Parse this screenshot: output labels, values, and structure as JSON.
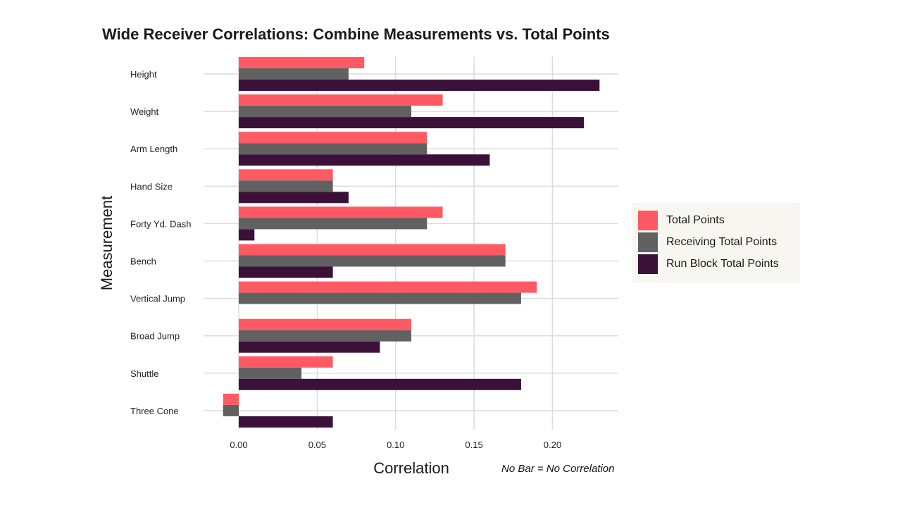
{
  "chart_data": {
    "type": "bar",
    "orientation": "horizontal",
    "title": "Wide Receiver Correlations: Combine Measurements vs. Total Points",
    "xlabel": "Correlation",
    "ylabel": "Measurement",
    "annotation": "No Bar = No Correlation",
    "xlim": [
      -0.022,
      0.242
    ],
    "xticks": [
      0.0,
      0.05,
      0.1,
      0.15,
      0.2
    ],
    "xtick_labels": [
      "0.00",
      "0.05",
      "0.10",
      "0.15",
      "0.20"
    ],
    "grid": true,
    "legend_position": "right",
    "categories": [
      "Height",
      "Weight",
      "Arm Length",
      "Hand Size",
      "Forty Yd. Dash",
      "Bench",
      "Vertical Jump",
      "Broad Jump",
      "Shuttle",
      "Three Cone"
    ],
    "series": [
      {
        "name": "Total Points",
        "color": "#FF5A64",
        "values": [
          0.08,
          0.13,
          0.12,
          0.06,
          0.13,
          0.17,
          0.19,
          0.11,
          0.06,
          -0.01
        ]
      },
      {
        "name": "Receiving Total Points",
        "color": "#616161",
        "values": [
          0.07,
          0.11,
          0.12,
          0.06,
          0.12,
          0.17,
          0.18,
          0.11,
          0.04,
          -0.01
        ]
      },
      {
        "name": "Run Block Total Points",
        "color": "#3B1139",
        "values": [
          0.23,
          0.22,
          0.16,
          0.07,
          0.01,
          0.06,
          0,
          0.09,
          0.18,
          0.06
        ]
      }
    ]
  }
}
